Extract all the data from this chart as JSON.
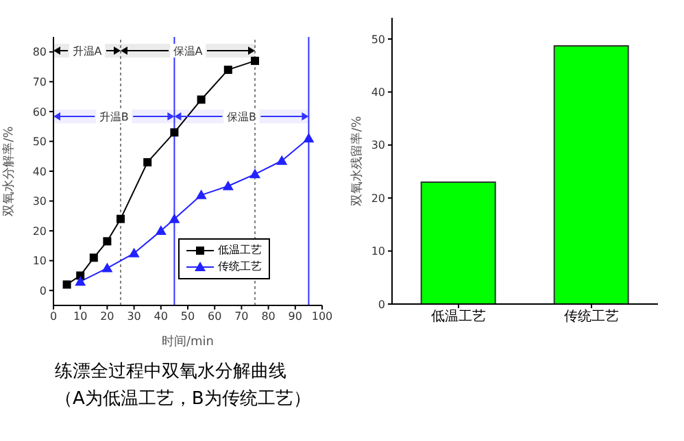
{
  "chart_data": [
    {
      "type": "line",
      "xlabel": "时间/min",
      "ylabel": "双氧水分解率/%",
      "xlim": [
        0,
        100
      ],
      "xticks": [
        0,
        10,
        20,
        30,
        40,
        50,
        60,
        70,
        80,
        90,
        100
      ],
      "ylim": [
        -5,
        85
      ],
      "yticks": [
        0,
        10,
        20,
        30,
        40,
        50,
        60,
        70,
        80
      ],
      "legend": "bottom right",
      "grid": false,
      "series": [
        {
          "name": "低温工艺",
          "color": "#000000",
          "marker": "square",
          "x": [
            5,
            10,
            15,
            20,
            25,
            35,
            45,
            55,
            65,
            75
          ],
          "values": [
            2,
            5,
            11,
            16.5,
            24,
            43,
            53,
            64,
            74,
            77
          ]
        },
        {
          "name": "传统工艺",
          "color": "#2222ff",
          "marker": "triangle",
          "x": [
            10,
            20,
            30,
            40,
            45,
            55,
            65,
            75,
            85,
            95
          ],
          "values": [
            3,
            7.5,
            12.5,
            20,
            24,
            32,
            35,
            39,
            43.5,
            51
          ]
        }
      ],
      "ref_lines": [
        {
          "axis": "x",
          "value": 25,
          "color": "#808080",
          "line_style": "dotted"
        },
        {
          "axis": "x",
          "value": 75,
          "color": "#808080",
          "line_style": "dotted"
        },
        {
          "axis": "x",
          "value": 45,
          "color": "#3333ff",
          "line_style": "solid"
        },
        {
          "axis": "x",
          "value": 95,
          "color": "#3333ff",
          "line_style": "solid"
        }
      ],
      "bands": [
        {
          "axis": "x",
          "from": 0,
          "to": 25,
          "label": "升温A",
          "color": "#000000"
        },
        {
          "axis": "x",
          "from": 25,
          "to": 75,
          "label": "保温A",
          "color": "#000000"
        },
        {
          "axis": "x",
          "from": 0,
          "to": 45,
          "label": "升温B",
          "color": "#3333ff"
        },
        {
          "axis": "x",
          "from": 45,
          "to": 95,
          "label": "保温B",
          "color": "#3333ff"
        }
      ],
      "annotations": [
        "练漂全过程中双氧水分解曲线",
        "（A为低温工艺，B为传统工艺）"
      ]
    },
    {
      "type": "bar",
      "ylabel": "双氧水残留率/%",
      "categories": [
        "低温工艺",
        "传统工艺"
      ],
      "values": [
        23,
        48.7
      ],
      "color": "#00ff00",
      "ylim": [
        0,
        54
      ],
      "yticks": [
        0,
        10,
        20,
        30,
        40,
        50
      ],
      "grid": false
    }
  ]
}
